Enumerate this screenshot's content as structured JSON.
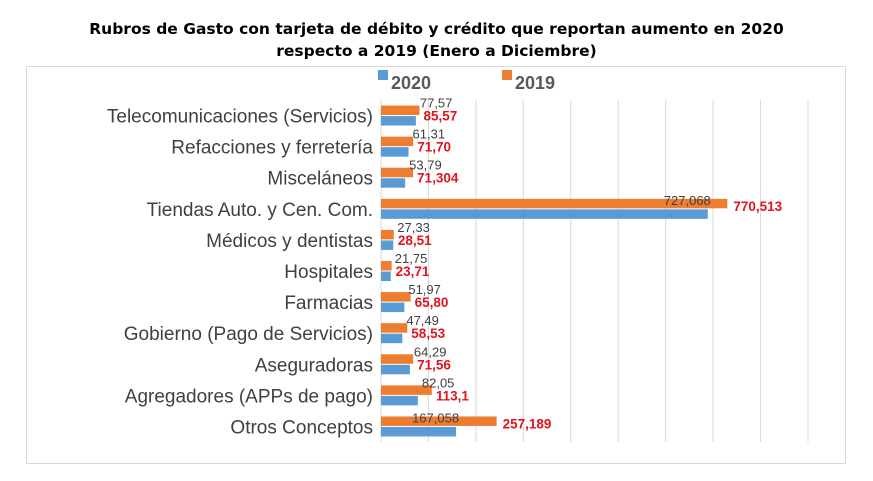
{
  "title_line1": "Rubros de Gasto con tarjeta de débito y crédito que reportan aumento en 2020",
  "title_line2": "respecto a 2019 (Enero a Diciembre)",
  "chart_data": {
    "type": "bar",
    "orientation": "horizontal",
    "categories": [
      "Telecomunicaciones (Servicios)",
      "Refacciones y ferretería",
      "Misceláneos",
      "Tiendas Auto. y Cen. Com.",
      "Médicos y dentistas",
      "Hospitales",
      "Farmacias",
      "Gobierno (Pago de Servicios)",
      "Aseguradoras",
      "Agregadores (APPs de pago)",
      "Otros Conceptos"
    ],
    "series": [
      {
        "name": "2020",
        "color": "#5b9bd5",
        "values": [
          77.57,
          61.31,
          53.79,
          727.068,
          27.33,
          21.75,
          51.97,
          47.49,
          64.29,
          82.05,
          167.058
        ],
        "labels": [
          "77,57",
          "61,31",
          "53,79",
          "727,068",
          "27,33",
          "21,75",
          "51,97",
          "47,49",
          "64,29",
          "82,05",
          "167,058"
        ]
      },
      {
        "name": "2019",
        "color": "#ed7d31",
        "values": [
          85.57,
          71.7,
          71.304,
          770.513,
          28.51,
          23.71,
          65.8,
          58.53,
          71.56,
          113.1,
          257.189
        ],
        "labels": [
          "85,57",
          "71,70",
          "71,304",
          "770,513",
          "28,51",
          "23,71",
          "65,80",
          "58,53",
          "71,56",
          "113,1",
          "257,189"
        ]
      }
    ],
    "xlim": [
      0,
      950
    ],
    "gridlines": "vertical",
    "legend_position": "top"
  }
}
